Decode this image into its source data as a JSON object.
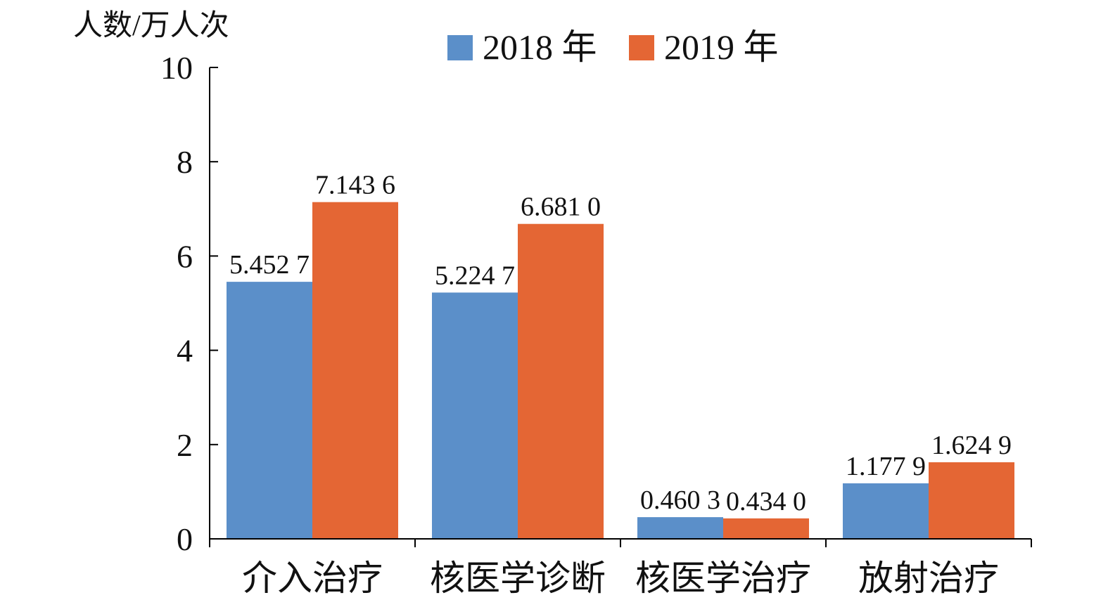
{
  "chart_data": {
    "type": "bar",
    "title": "",
    "xlabel": "",
    "ylabel": "人数/万人次",
    "ylim": [
      0,
      10
    ],
    "yticks": [
      0,
      2,
      4,
      6,
      8,
      10
    ],
    "ytick_labels": [
      "0",
      "2",
      "4",
      "6",
      "8",
      "10"
    ],
    "categories": [
      "介入治疗",
      "核医学诊断",
      "核医学治疗",
      "放射治疗"
    ],
    "series": [
      {
        "name": "2018 年",
        "color": "#5B8FC9",
        "values": [
          5.4527,
          5.2247,
          0.4603,
          1.1779
        ],
        "labels": [
          "5.452 7",
          "5.224 7",
          "0.460 3",
          "1.177 9"
        ]
      },
      {
        "name": "2019 年",
        "color": "#E46634",
        "values": [
          7.1436,
          6.681,
          0.434,
          1.6249
        ],
        "labels": [
          "7.143 6",
          "6.681 0",
          "0.434 0",
          "1.624 9"
        ]
      }
    ],
    "legend": "top",
    "grid": false
  }
}
